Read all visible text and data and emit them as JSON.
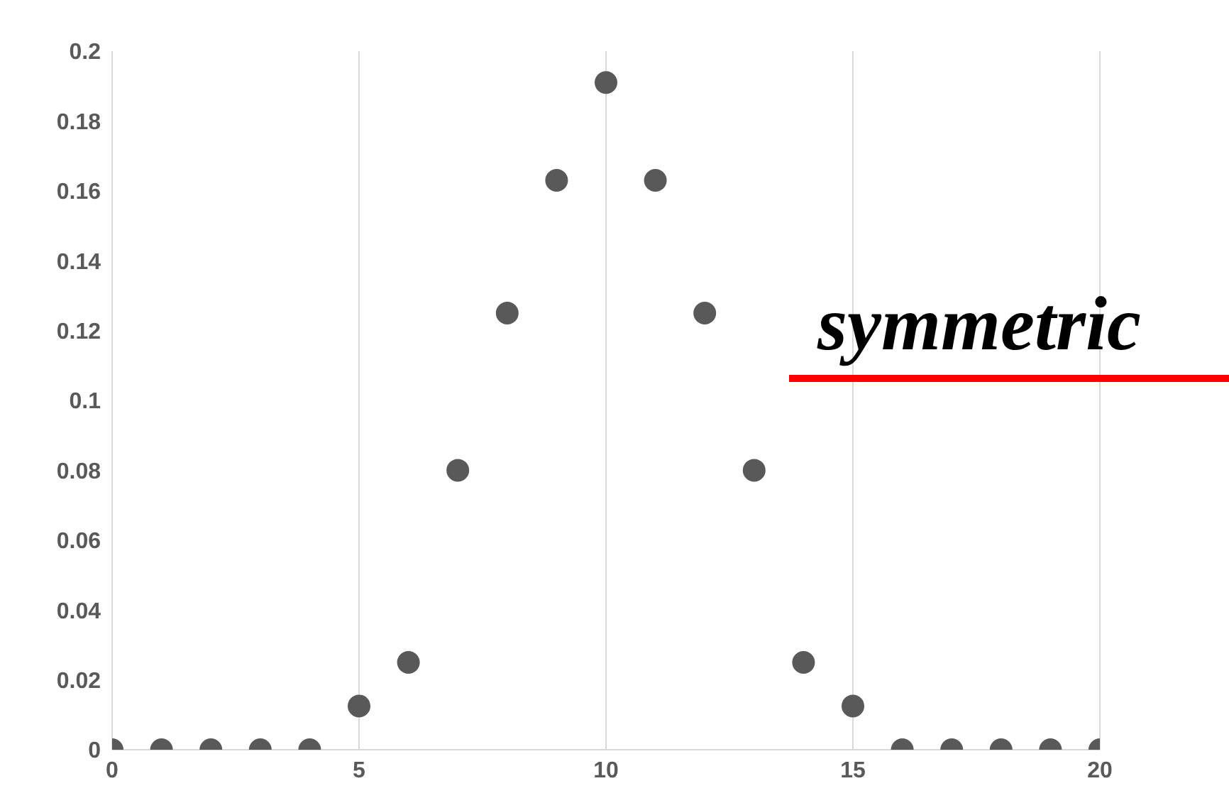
{
  "chart_data": {
    "type": "scatter",
    "x": [
      0,
      1,
      2,
      3,
      4,
      5,
      6,
      7,
      8,
      9,
      10,
      11,
      12,
      13,
      14,
      15,
      16,
      17,
      18,
      19,
      20
    ],
    "values": [
      0,
      0,
      0,
      0,
      0,
      0.0125,
      0.025,
      0.08,
      0.125,
      0.163,
      0.191,
      0.163,
      0.125,
      0.08,
      0.025,
      0.0125,
      0,
      0,
      0,
      0,
      0
    ],
    "color": "#595959",
    "marker": "circle",
    "grid": "x",
    "xlim": [
      0,
      20
    ],
    "xticks": [
      0,
      5,
      10,
      15,
      20
    ],
    "ylim": [
      0,
      0.2
    ],
    "yticks": [
      0,
      0.02,
      0.04,
      0.06,
      0.08,
      0.1,
      0.12,
      0.14,
      0.16,
      0.18,
      0.2
    ],
    "annotations": [
      "symmetric"
    ]
  }
}
